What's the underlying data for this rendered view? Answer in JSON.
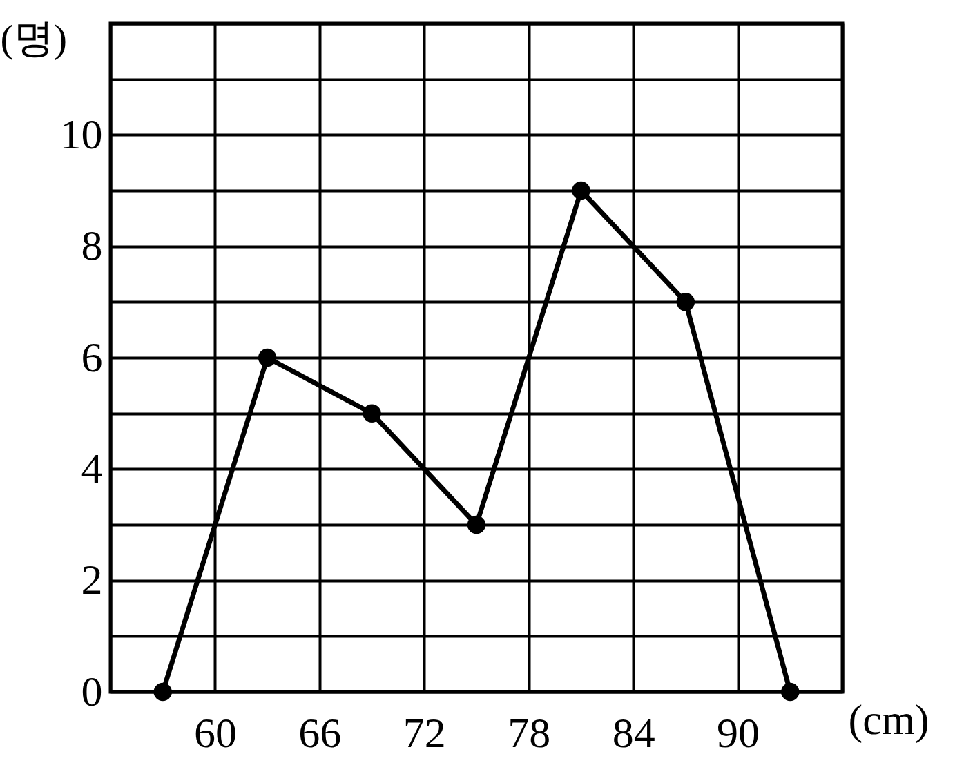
{
  "chart_data": {
    "type": "line",
    "xlabel": "(cm)",
    "ylabel": "(명)",
    "x": [
      57,
      63,
      69,
      75,
      81,
      87,
      93
    ],
    "values": [
      0,
      6,
      5,
      3,
      9,
      7,
      0
    ],
    "color": "#000000",
    "marker": "circle",
    "line_style": "solid",
    "grid": true,
    "xlim": [
      54,
      96
    ],
    "xticks": [
      {
        "value": 54,
        "label": null
      },
      60,
      66,
      72,
      78,
      84,
      90,
      {
        "value": 96,
        "label": null
      }
    ],
    "ylim": [
      0,
      12
    ],
    "yticks": [
      0,
      {
        "value": 1,
        "label": null
      },
      2,
      {
        "value": 3,
        "label": null
      },
      4,
      {
        "value": 5,
        "label": null
      },
      6,
      {
        "value": 7,
        "label": null
      },
      8,
      {
        "value": 9,
        "label": null
      },
      10,
      {
        "value": 11,
        "label": null
      },
      {
        "value": 12,
        "label": null
      }
    ]
  }
}
